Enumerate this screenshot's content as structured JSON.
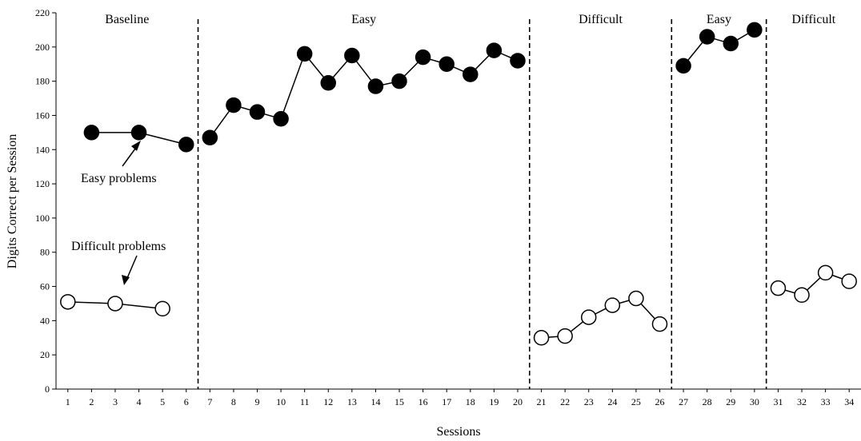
{
  "chart_data": {
    "type": "scatter",
    "xlabel": "Sessions",
    "ylabel": "Digits Correct per Session",
    "xlim": [
      0.5,
      34.5
    ],
    "ylim": [
      0,
      220
    ],
    "xticks": [
      1,
      2,
      3,
      4,
      5,
      6,
      7,
      8,
      9,
      10,
      11,
      12,
      13,
      14,
      15,
      16,
      17,
      18,
      19,
      20,
      21,
      22,
      23,
      24,
      25,
      26,
      27,
      28,
      29,
      30,
      31,
      32,
      33,
      34
    ],
    "yticks": [
      0,
      20,
      40,
      60,
      80,
      100,
      120,
      140,
      160,
      180,
      200,
      220
    ],
    "grid": false,
    "phase_changes": [
      6.5,
      20.5,
      26.5,
      30.5
    ],
    "phases": [
      {
        "label": "Baseline",
        "from": 1,
        "to": 6
      },
      {
        "label": "Easy",
        "from": 7,
        "to": 20
      },
      {
        "label": "Difficult",
        "from": 21,
        "to": 26
      },
      {
        "label": "Easy",
        "from": 27,
        "to": 30
      },
      {
        "label": "Difficult",
        "from": 31,
        "to": 34
      }
    ],
    "series": [
      {
        "name": "Easy problems",
        "marker": "filled-circle",
        "segments": [
          [
            [
              2,
              150
            ],
            [
              4,
              150
            ],
            [
              6,
              143
            ]
          ],
          [
            [
              7,
              147
            ],
            [
              8,
              166
            ],
            [
              9,
              162
            ],
            [
              10,
              158
            ],
            [
              11,
              196
            ],
            [
              12,
              179
            ],
            [
              13,
              195
            ],
            [
              14,
              177
            ],
            [
              15,
              180
            ],
            [
              16,
              194
            ],
            [
              17,
              190
            ],
            [
              18,
              184
            ],
            [
              19,
              198
            ],
            [
              20,
              192
            ]
          ],
          [
            [
              27,
              189
            ],
            [
              28,
              206
            ],
            [
              29,
              202
            ],
            [
              30,
              210
            ]
          ]
        ]
      },
      {
        "name": "Difficult problems",
        "marker": "open-circle",
        "segments": [
          [
            [
              1,
              51
            ],
            [
              3,
              50
            ],
            [
              5,
              47
            ]
          ],
          [
            [
              21,
              30
            ],
            [
              22,
              31
            ],
            [
              23,
              42
            ],
            [
              24,
              49
            ],
            [
              25,
              53
            ],
            [
              26,
              38
            ]
          ],
          [
            [
              31,
              59
            ],
            [
              32,
              55
            ],
            [
              33,
              68
            ],
            [
              34,
              63
            ]
          ]
        ]
      }
    ],
    "annotations": [
      {
        "text": "Easy problems",
        "points_to_series": "Easy problems"
      },
      {
        "text": "Difficult problems",
        "points_to_series": "Difficult problems"
      }
    ]
  }
}
